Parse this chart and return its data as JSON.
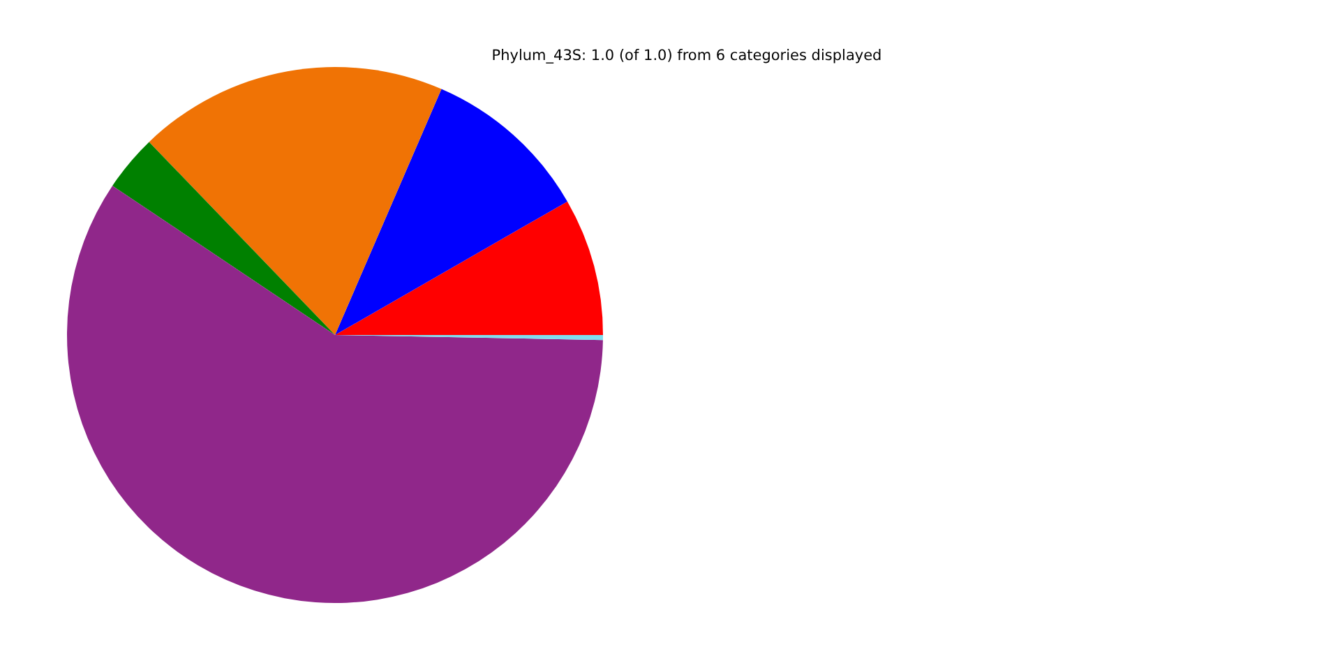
{
  "chart_data": {
    "type": "pie",
    "title": "Phylum_43S: 1.0 (of 1.0) from 6 categories displayed",
    "categories": [
      null,
      null,
      null,
      null,
      null,
      null
    ],
    "values": [
      8.3,
      10.2,
      18.7,
      3.4,
      59.1,
      0.3
    ],
    "colors": [
      "#ff0000",
      "#0000ff",
      "#f07305",
      "#008000",
      "#90278a",
      "#7fdfef"
    ]
  }
}
